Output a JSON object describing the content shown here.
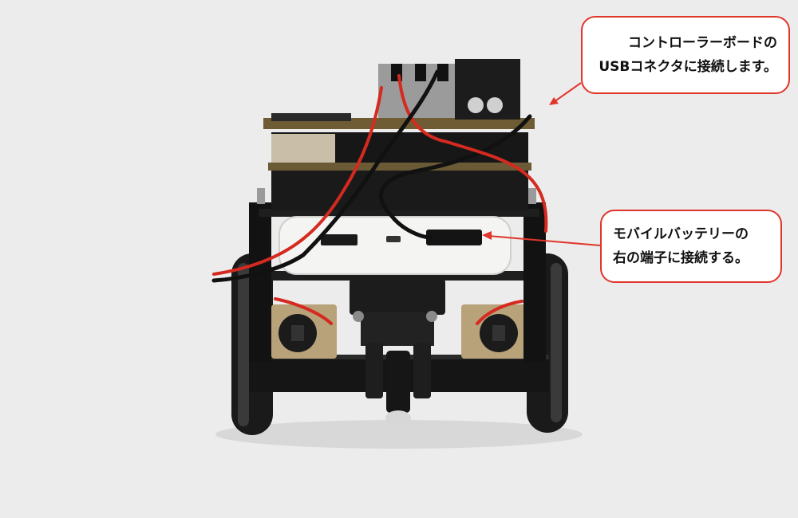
{
  "annotations": {
    "usb_connector": {
      "line1": "コントローラーボードの",
      "line2": "USBコネクタに接続します。"
    },
    "battery_port": {
      "line1": "モバイルバッテリーの",
      "line2": "右の端子に接続する。"
    }
  },
  "colors": {
    "background": "#ececec",
    "callout_border": "#e0352a",
    "arrow": "#e0352a",
    "cable_red": "#d42a1f",
    "battery_white": "#f4f4f2"
  }
}
